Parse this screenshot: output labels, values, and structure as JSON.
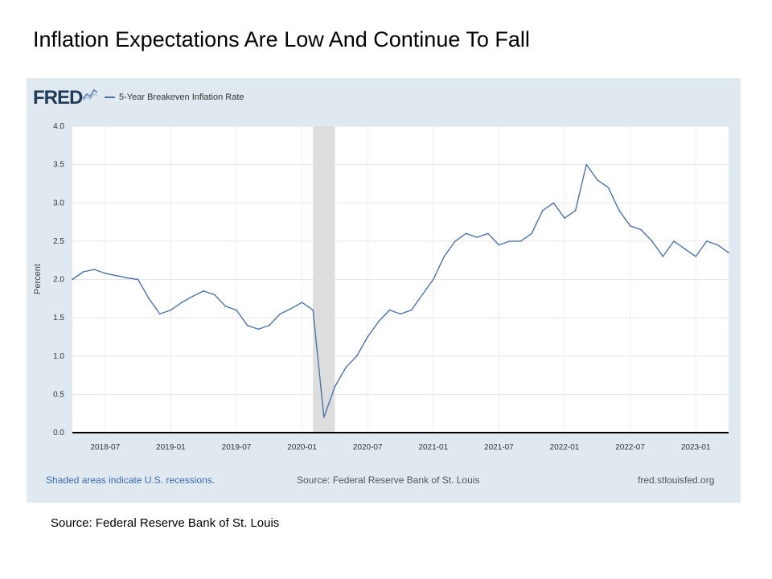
{
  "slide_title": "Inflation Expectations Are Low And Continue To Fall",
  "source_text": "Source: Federal Reserve Bank of St. Louis",
  "fred": {
    "logo_text": "FRED",
    "footer_left": "Shaded areas indicate U.S. recessions.",
    "footer_mid": "Source: Federal Reserve Bank of St. Louis",
    "footer_right": "fred.stlouisfed.org"
  },
  "colors": {
    "line": "#4a73a8",
    "panel": "#e1e9f0",
    "recession": "#dddddd",
    "link": "#3a6bb0"
  },
  "chart_data": {
    "type": "line",
    "title": "",
    "xlabel": "",
    "ylabel": "Percent",
    "ylim": [
      0.0,
      4.0
    ],
    "yticks": [
      "0.0",
      "0.5",
      "1.0",
      "1.5",
      "2.0",
      "2.5",
      "3.0",
      "3.5",
      "4.0"
    ],
    "xlim": [
      "2018-04",
      "2023-04"
    ],
    "xticks": [
      "2018-07",
      "2019-01",
      "2019-07",
      "2020-01",
      "2020-07",
      "2021-01",
      "2021-07",
      "2022-01",
      "2022-07",
      "2023-01"
    ],
    "grid": true,
    "legend_position": "top-left",
    "recession_shading": {
      "start": "2020-02",
      "end": "2020-04"
    },
    "series": [
      {
        "name": "5-Year Breakeven Inflation Rate",
        "x": [
          "2018-04",
          "2018-05",
          "2018-06",
          "2018-07",
          "2018-08",
          "2018-09",
          "2018-10",
          "2018-11",
          "2018-12",
          "2019-01",
          "2019-02",
          "2019-03",
          "2019-04",
          "2019-05",
          "2019-06",
          "2019-07",
          "2019-08",
          "2019-09",
          "2019-10",
          "2019-11",
          "2019-12",
          "2020-01",
          "2020-02",
          "2020-03",
          "2020-04",
          "2020-05",
          "2020-06",
          "2020-07",
          "2020-08",
          "2020-09",
          "2020-10",
          "2020-11",
          "2020-12",
          "2021-01",
          "2021-02",
          "2021-03",
          "2021-04",
          "2021-05",
          "2021-06",
          "2021-07",
          "2021-08",
          "2021-09",
          "2021-10",
          "2021-11",
          "2021-12",
          "2022-01",
          "2022-02",
          "2022-03",
          "2022-04",
          "2022-05",
          "2022-06",
          "2022-07",
          "2022-08",
          "2022-09",
          "2022-10",
          "2022-11",
          "2022-12",
          "2023-01",
          "2023-02",
          "2023-03",
          "2023-04"
        ],
        "values": [
          2.0,
          2.1,
          2.13,
          2.08,
          2.05,
          2.02,
          2.0,
          1.75,
          1.55,
          1.6,
          1.7,
          1.78,
          1.85,
          1.8,
          1.65,
          1.6,
          1.4,
          1.35,
          1.4,
          1.55,
          1.62,
          1.7,
          1.6,
          0.2,
          0.6,
          0.85,
          1.0,
          1.25,
          1.45,
          1.6,
          1.55,
          1.6,
          1.8,
          2.0,
          2.3,
          2.5,
          2.6,
          2.55,
          2.6,
          2.45,
          2.5,
          2.5,
          2.6,
          2.9,
          3.0,
          2.8,
          2.9,
          3.5,
          3.3,
          3.2,
          2.9,
          2.7,
          2.65,
          2.5,
          2.3,
          2.5,
          2.4,
          2.3,
          2.5,
          2.45,
          2.35
        ]
      }
    ]
  }
}
